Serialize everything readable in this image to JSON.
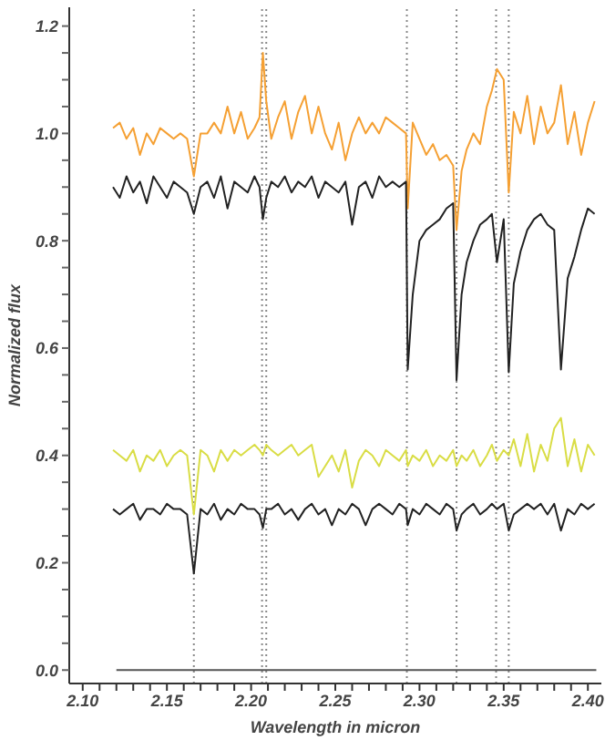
{
  "chart_data": {
    "type": "line",
    "xlabel": "Wavelength in micron",
    "ylabel": "Normalized flux",
    "x": [
      2.118,
      2.122,
      2.126,
      2.13,
      2.134,
      2.138,
      2.142,
      2.146,
      2.15,
      2.154,
      2.158,
      2.162,
      2.166,
      2.17,
      2.174,
      2.178,
      2.182,
      2.186,
      2.19,
      2.194,
      2.198,
      2.202,
      2.205,
      2.207,
      2.209,
      2.212,
      2.216,
      2.22,
      2.224,
      2.228,
      2.232,
      2.236,
      2.24,
      2.244,
      2.248,
      2.252,
      2.256,
      2.26,
      2.264,
      2.268,
      2.272,
      2.276,
      2.28,
      2.284,
      2.288,
      2.292,
      2.293,
      2.296,
      2.3,
      2.304,
      2.308,
      2.312,
      2.316,
      2.32,
      2.322,
      2.325,
      2.328,
      2.332,
      2.336,
      2.34,
      2.343,
      2.346,
      2.35,
      2.353,
      2.356,
      2.36,
      2.364,
      2.368,
      2.372,
      2.376,
      2.38,
      2.384,
      2.388,
      2.392,
      2.396,
      2.4,
      2.404
    ],
    "series": [
      {
        "color": "#f5a033",
        "values": [
          1.01,
          1.02,
          0.99,
          1.01,
          0.96,
          1.0,
          0.98,
          1.01,
          1.0,
          0.99,
          1.0,
          0.99,
          0.92,
          1.0,
          1.0,
          1.02,
          1.0,
          1.05,
          1.0,
          1.04,
          0.99,
          1.01,
          1.03,
          1.15,
          1.06,
          0.99,
          1.03,
          1.06,
          0.99,
          1.04,
          1.07,
          1.0,
          1.05,
          1.0,
          0.97,
          1.02,
          0.95,
          1.0,
          1.03,
          1.0,
          1.02,
          1.0,
          1.03,
          1.02,
          1.01,
          1.0,
          0.86,
          1.02,
          0.99,
          0.96,
          0.98,
          0.95,
          0.96,
          0.94,
          0.82,
          0.93,
          0.97,
          1.0,
          0.98,
          1.05,
          1.08,
          1.12,
          1.1,
          0.89,
          1.04,
          1.0,
          1.07,
          0.98,
          1.05,
          1.0,
          1.02,
          1.09,
          0.98,
          1.04,
          0.96,
          1.02,
          1.06
        ]
      },
      {
        "color": "#222222",
        "values": [
          0.9,
          0.88,
          0.92,
          0.89,
          0.91,
          0.87,
          0.92,
          0.9,
          0.88,
          0.91,
          0.9,
          0.89,
          0.85,
          0.9,
          0.91,
          0.88,
          0.92,
          0.86,
          0.91,
          0.9,
          0.89,
          0.92,
          0.9,
          0.84,
          0.88,
          0.91,
          0.9,
          0.92,
          0.89,
          0.91,
          0.9,
          0.92,
          0.88,
          0.91,
          0.9,
          0.89,
          0.91,
          0.83,
          0.9,
          0.91,
          0.88,
          0.92,
          0.9,
          0.91,
          0.9,
          0.91,
          0.56,
          0.7,
          0.8,
          0.82,
          0.83,
          0.84,
          0.86,
          0.87,
          0.54,
          0.7,
          0.76,
          0.8,
          0.83,
          0.84,
          0.85,
          0.76,
          0.84,
          0.555,
          0.72,
          0.78,
          0.82,
          0.84,
          0.85,
          0.83,
          0.82,
          0.56,
          0.73,
          0.77,
          0.82,
          0.86,
          0.85
        ]
      },
      {
        "color": "#d9dd45",
        "values": [
          0.41,
          0.4,
          0.39,
          0.41,
          0.37,
          0.4,
          0.39,
          0.41,
          0.38,
          0.4,
          0.41,
          0.4,
          0.29,
          0.41,
          0.4,
          0.37,
          0.41,
          0.39,
          0.41,
          0.4,
          0.41,
          0.42,
          0.41,
          0.4,
          0.42,
          0.41,
          0.4,
          0.41,
          0.42,
          0.4,
          0.41,
          0.42,
          0.36,
          0.38,
          0.4,
          0.37,
          0.41,
          0.34,
          0.39,
          0.41,
          0.4,
          0.38,
          0.41,
          0.4,
          0.39,
          0.41,
          0.38,
          0.4,
          0.39,
          0.41,
          0.38,
          0.4,
          0.39,
          0.41,
          0.38,
          0.4,
          0.39,
          0.41,
          0.38,
          0.4,
          0.42,
          0.39,
          0.41,
          0.4,
          0.43,
          0.38,
          0.44,
          0.37,
          0.42,
          0.39,
          0.45,
          0.47,
          0.38,
          0.43,
          0.37,
          0.42,
          0.4
        ]
      },
      {
        "color": "#222222",
        "values": [
          0.3,
          0.29,
          0.3,
          0.31,
          0.28,
          0.3,
          0.3,
          0.29,
          0.31,
          0.3,
          0.3,
          0.29,
          0.18,
          0.3,
          0.29,
          0.31,
          0.28,
          0.3,
          0.29,
          0.31,
          0.3,
          0.3,
          0.29,
          0.265,
          0.3,
          0.3,
          0.31,
          0.29,
          0.3,
          0.28,
          0.3,
          0.31,
          0.29,
          0.3,
          0.27,
          0.3,
          0.29,
          0.31,
          0.3,
          0.27,
          0.3,
          0.31,
          0.3,
          0.29,
          0.31,
          0.3,
          0.27,
          0.3,
          0.29,
          0.31,
          0.3,
          0.29,
          0.31,
          0.3,
          0.26,
          0.29,
          0.3,
          0.31,
          0.29,
          0.3,
          0.31,
          0.3,
          0.31,
          0.26,
          0.29,
          0.3,
          0.31,
          0.3,
          0.31,
          0.29,
          0.31,
          0.26,
          0.3,
          0.29,
          0.31,
          0.3,
          0.31
        ]
      },
      {
        "color": "#555555",
        "x": [
          2.12,
          2.405
        ],
        "values": [
          0,
          0
        ]
      }
    ],
    "xlim": [
      2.092,
      2.408
    ],
    "xticks": [
      {
        "value": 2.1,
        "label": "2.10"
      },
      {
        "value": 2.11,
        "label": null
      },
      {
        "value": 2.12,
        "label": null
      },
      {
        "value": 2.13,
        "label": null
      },
      {
        "value": 2.14,
        "label": null
      },
      2.15,
      {
        "value": 2.16,
        "label": null
      },
      {
        "value": 2.17,
        "label": null
      },
      {
        "value": 2.18,
        "label": null
      },
      {
        "value": 2.19,
        "label": null
      },
      {
        "value": 2.2,
        "label": "2.20"
      },
      {
        "value": 2.21,
        "label": null
      },
      {
        "value": 2.22,
        "label": null
      },
      {
        "value": 2.23,
        "label": null
      },
      {
        "value": 2.24,
        "label": null
      },
      2.25,
      {
        "value": 2.26,
        "label": null
      },
      {
        "value": 2.27,
        "label": null
      },
      {
        "value": 2.28,
        "label": null
      },
      {
        "value": 2.29,
        "label": null
      },
      {
        "value": 2.3,
        "label": "2.30"
      },
      {
        "value": 2.31,
        "label": null
      },
      {
        "value": 2.32,
        "label": null
      },
      {
        "value": 2.33,
        "label": null
      },
      {
        "value": 2.34,
        "label": null
      },
      2.35,
      {
        "value": 2.36,
        "label": null
      },
      {
        "value": 2.37,
        "label": null
      },
      {
        "value": 2.38,
        "label": null
      },
      {
        "value": 2.39,
        "label": null
      },
      {
        "value": 2.4,
        "label": "2.40"
      }
    ],
    "ylim": [
      -0.025,
      1.235
    ],
    "yticks": [
      {
        "value": 0,
        "label": "0.0"
      },
      {
        "value": 0.05,
        "label": null
      },
      {
        "value": 0.1,
        "label": null
      },
      {
        "value": 0.15,
        "label": null
      },
      0.2,
      {
        "value": 0.25,
        "label": null
      },
      {
        "value": 0.3,
        "label": null
      },
      {
        "value": 0.35,
        "label": null
      },
      0.4,
      {
        "value": 0.45,
        "label": null
      },
      {
        "value": 0.5,
        "label": null
      },
      {
        "value": 0.55,
        "label": null
      },
      0.6,
      {
        "value": 0.65,
        "label": null
      },
      {
        "value": 0.7,
        "label": null
      },
      {
        "value": 0.75,
        "label": null
      },
      0.8,
      {
        "value": 0.85,
        "label": null
      },
      {
        "value": 0.9,
        "label": null
      },
      {
        "value": 0.95,
        "label": null
      },
      {
        "value": 1,
        "label": "1.0"
      },
      {
        "value": 1.05,
        "label": null
      },
      {
        "value": 1.1,
        "label": null
      },
      {
        "value": 1.15,
        "label": null
      },
      1.2
    ],
    "ref_lines": [
      {
        "axis": "x",
        "value": 2.166,
        "color": "#888888",
        "line_style": "dotted"
      },
      {
        "axis": "x",
        "value": 2.2065,
        "color": "#888888",
        "line_style": "dotted"
      },
      {
        "axis": "x",
        "value": 2.209,
        "color": "#888888",
        "line_style": "dotted"
      },
      {
        "axis": "x",
        "value": 2.2925,
        "color": "#888888",
        "line_style": "dotted"
      },
      {
        "axis": "x",
        "value": 2.322,
        "color": "#888888",
        "line_style": "dotted"
      },
      {
        "axis": "x",
        "value": 2.3455,
        "color": "#888888",
        "line_style": "dotted"
      },
      {
        "axis": "x",
        "value": 2.353,
        "color": "#888888",
        "line_style": "dotted"
      }
    ],
    "grid": false,
    "legend": false,
    "marker": "none",
    "line_style": "solid"
  }
}
